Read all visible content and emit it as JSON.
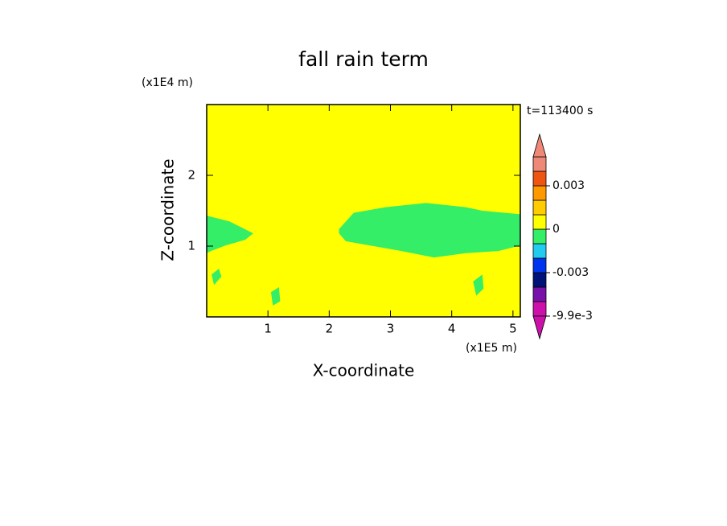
{
  "chart_data": {
    "type": "contour",
    "title": "fall rain term",
    "xlabel": "X-coordinate",
    "ylabel": "Z-coordinate",
    "x_unit_label": "(x1E5 m)",
    "y_unit_label": "(x1E4 m)",
    "time_label": "t=113400 s",
    "xlim": [
      0,
      5.12
    ],
    "ylim": [
      0,
      3
    ],
    "xticks": [
      1,
      2,
      3,
      4,
      5
    ],
    "yticks": [
      1,
      2
    ],
    "background_color": "#ffff00",
    "regions": [
      {
        "color": "#33ee66",
        "x": [
          0,
          0.37,
          0.76,
          0.63,
          0.31,
          0.07,
          0
        ],
        "z": [
          1.43,
          1.35,
          1.18,
          1.09,
          1.01,
          0.93,
          0.9
        ]
      },
      {
        "color": "#33ee66",
        "x": [
          0.08,
          0.2,
          0.24,
          0.12
        ],
        "z": [
          0.6,
          0.68,
          0.57,
          0.45
        ]
      },
      {
        "color": "#33ee66",
        "x": [
          1.05,
          1.18,
          1.2,
          1.08
        ],
        "z": [
          0.35,
          0.42,
          0.22,
          0.16
        ]
      },
      {
        "color": "#33ee66",
        "x": [
          2.16,
          2.4,
          2.92,
          3.58,
          4.23,
          4.5,
          5.12,
          5.12,
          4.76,
          4.23,
          3.71,
          3.18,
          2.66,
          2.27,
          2.16
        ],
        "z": [
          1.24,
          1.47,
          1.55,
          1.61,
          1.55,
          1.5,
          1.45,
          1.01,
          0.93,
          0.9,
          0.84,
          0.93,
          1.01,
          1.07,
          1.18
        ]
      },
      {
        "color": "#33ee66",
        "x": [
          4.35,
          4.5,
          4.52,
          4.4
        ],
        "z": [
          0.5,
          0.6,
          0.4,
          0.3
        ]
      }
    ],
    "colorbar": {
      "levels": [
        -0.0099,
        -0.006,
        -0.004,
        -0.003,
        -0.002,
        -0.001,
        0,
        0.001,
        0.002,
        0.003,
        0.004,
        0.006
      ],
      "colors": [
        "#cc11aa",
        "#7711aa",
        "#001177",
        "#0033ee",
        "#22ccee",
        "#33ee66",
        "#ffff00",
        "#ffcc00",
        "#ff9900",
        "#ee5511",
        "#ee8877"
      ],
      "under_color": "#cc11aa",
      "over_color": "#ee8877",
      "ticks": [
        {
          "value": 0.003,
          "label": "0.003"
        },
        {
          "value": 0,
          "label": "0"
        },
        {
          "value": -0.003,
          "label": "-0.003"
        },
        {
          "value": -0.0099,
          "label": "-9.9e-3"
        }
      ]
    }
  }
}
